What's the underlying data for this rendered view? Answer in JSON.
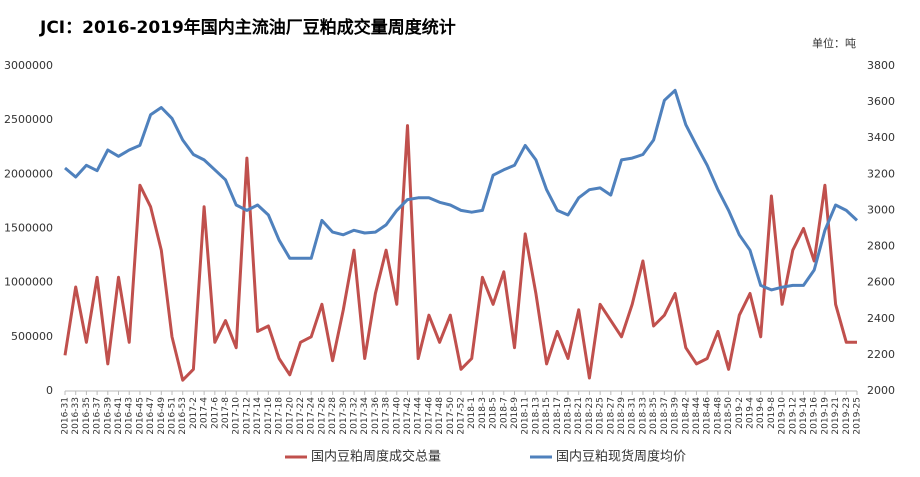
{
  "chart_data": {
    "type": "line",
    "title": "JCI：2016-2019年国内主流油厂豆粕成交量周度统计",
    "unit_label": "单位：吨",
    "categories": [
      "2016-31",
      "2016-33",
      "2016-35",
      "2016-37",
      "2016-39",
      "2016-41",
      "2016-43",
      "2016-45",
      "2016-47",
      "2016-49",
      "2016-51",
      "2016-53",
      "2017-2",
      "2017-4",
      "2017-6",
      "2017-8",
      "2017-10",
      "2017-12",
      "2017-14",
      "2017-16",
      "2017-18",
      "2017-20",
      "2017-22",
      "2017-24",
      "2017-26",
      "2017-28",
      "2017-30",
      "2017-32",
      "2017-34",
      "2017-36",
      "2017-38",
      "2017-40",
      "2017-42",
      "2017-44",
      "2017-46",
      "2017-48",
      "2017-50",
      "2017-52",
      "2018-1",
      "2018-3",
      "2018-5",
      "2018-7",
      "2018-9",
      "2018-11",
      "2018-13",
      "2018-15",
      "2018-17",
      "2018-19",
      "2018-21",
      "2018-23",
      "2018-25",
      "2018-27",
      "2018-29",
      "2018-31",
      "2018-33",
      "2018-35",
      "2018-37",
      "2018-39",
      "2018-42",
      "2018-44",
      "2018-46",
      "2018-48",
      "2018-50",
      "2019-2",
      "2019-4",
      "2019-6",
      "2019-8",
      "2019-10",
      "2019-12",
      "2019-14",
      "2019-16",
      "2019-19",
      "2019-21",
      "2019-23",
      "2019-25"
    ],
    "series": [
      {
        "name": "国内豆粕周度成交总量",
        "color": "#c0504d",
        "axis": "y",
        "values": [
          330000,
          960000,
          450000,
          1050000,
          250000,
          1050000,
          450000,
          1900000,
          1700000,
          1300000,
          500000,
          100000,
          200000,
          1700000,
          450000,
          650000,
          400000,
          2150000,
          550000,
          600000,
          300000,
          150000,
          450000,
          500000,
          800000,
          280000,
          750000,
          1300000,
          300000,
          900000,
          1300000,
          800000,
          2450000,
          300000,
          700000,
          450000,
          700000,
          200000,
          300000,
          1050000,
          800000,
          1100000,
          400000,
          1450000,
          900000,
          250000,
          550000,
          300000,
          750000,
          120000,
          800000,
          650000,
          500000,
          800000,
          1200000,
          600000,
          700000,
          900000,
          400000,
          250000,
          300000,
          550000,
          200000,
          700000,
          900000,
          500000,
          1800000,
          800000,
          1300000,
          1500000,
          1200000,
          1900000,
          800000,
          450000,
          450000
        ]
      },
      {
        "name": "国内豆粕现货周度均价",
        "color": "#4f81bd",
        "axis": "y2",
        "values": [
          3235,
          3185,
          3250,
          3220,
          3335,
          3300,
          3335,
          3360,
          3530,
          3570,
          3510,
          3390,
          3310,
          3280,
          3225,
          3170,
          3030,
          3000,
          3030,
          2975,
          2835,
          2735,
          2735,
          2735,
          2945,
          2880,
          2865,
          2890,
          2875,
          2880,
          2920,
          3000,
          3060,
          3070,
          3070,
          3045,
          3030,
          3000,
          2990,
          3000,
          3195,
          3225,
          3250,
          3360,
          3280,
          3115,
          3000,
          2975,
          3070,
          3115,
          3125,
          3085,
          3280,
          3290,
          3310,
          3390,
          3610,
          3665,
          3475,
          3360,
          3250,
          3115,
          3000,
          2865,
          2780,
          2585,
          2560,
          2575,
          2585,
          2585,
          2670,
          2890,
          3030,
          3000,
          2945
        ]
      }
    ],
    "ylim": [
      0,
      3000000
    ],
    "yticks": [
      0,
      500000,
      1000000,
      1500000,
      2000000,
      2500000,
      3000000
    ],
    "y2lim": [
      2000,
      3800
    ],
    "y2ticks": [
      2000,
      2200,
      2400,
      2600,
      2800,
      3000,
      3200,
      3400,
      3600,
      3800
    ],
    "legend": "bottom"
  }
}
